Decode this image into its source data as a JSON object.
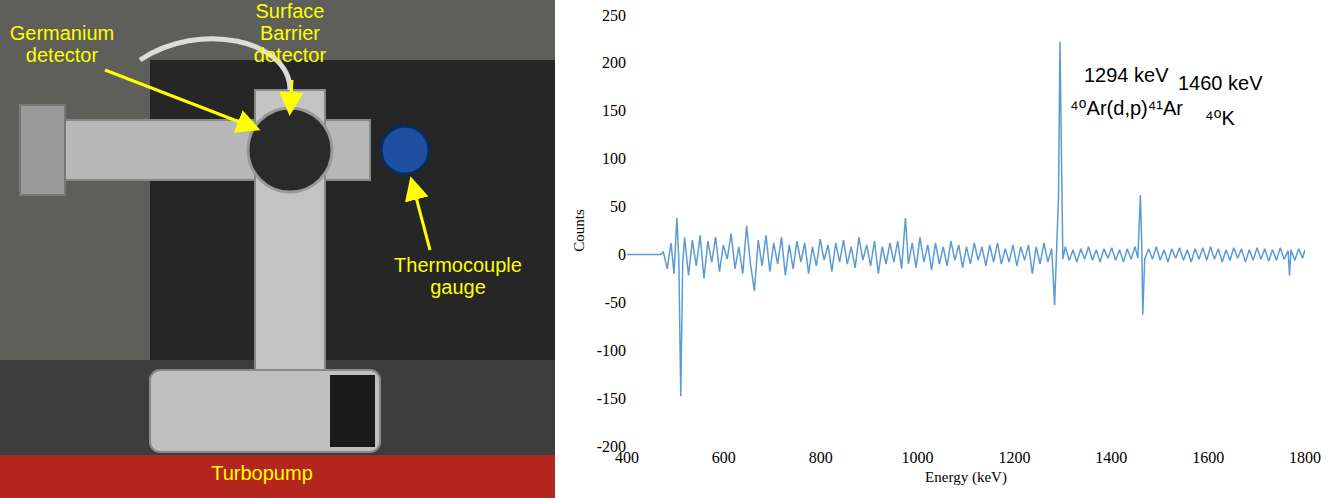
{
  "photo": {
    "labels": [
      {
        "lines": [
          "Germanium",
          "detector"
        ]
      },
      {
        "lines": [
          "Surface",
          "Barrier",
          "detector"
        ]
      },
      {
        "lines": [
          "Thermocouple",
          "gauge"
        ]
      },
      {
        "lines": [
          "Turbopump"
        ]
      }
    ]
  },
  "chart_data": {
    "type": "line",
    "x_label": "Energy (keV)",
    "y_label": "Counts",
    "color": "#5b9bd5",
    "grid": false,
    "xlim": [
      400,
      1800
    ],
    "ylim": [
      -200,
      250
    ],
    "xticks": [
      400,
      600,
      800,
      1000,
      1200,
      1400,
      1600,
      1800
    ],
    "yticks": [
      -200,
      -150,
      -100,
      -50,
      0,
      50,
      100,
      150,
      200,
      250
    ],
    "annotations": [
      {
        "lines": [
          "1294 keV",
          "⁴⁰Ar(d,p)⁴¹Ar"
        ]
      },
      {
        "lines": [
          "1460 keV",
          "⁴⁰K"
        ]
      }
    ],
    "x": [
      400,
      470,
      475,
      483,
      491,
      497,
      503,
      507,
      511,
      515,
      519,
      527,
      535,
      543,
      551,
      559,
      567,
      575,
      583,
      591,
      599,
      607,
      615,
      623,
      631,
      639,
      647,
      655,
      663,
      671,
      679,
      687,
      695,
      703,
      711,
      719,
      727,
      735,
      743,
      751,
      759,
      767,
      775,
      783,
      791,
      799,
      807,
      815,
      823,
      831,
      839,
      847,
      855,
      863,
      871,
      879,
      887,
      895,
      903,
      911,
      919,
      927,
      935,
      943,
      951,
      959,
      967,
      975,
      981,
      989,
      997,
      1005,
      1013,
      1021,
      1029,
      1037,
      1045,
      1053,
      1061,
      1069,
      1077,
      1085,
      1093,
      1101,
      1109,
      1117,
      1125,
      1133,
      1141,
      1149,
      1157,
      1165,
      1173,
      1181,
      1189,
      1197,
      1205,
      1213,
      1221,
      1229,
      1237,
      1245,
      1253,
      1261,
      1269,
      1277,
      1283,
      1287,
      1291,
      1294,
      1297,
      1300,
      1305,
      1313,
      1321,
      1329,
      1337,
      1345,
      1353,
      1361,
      1369,
      1377,
      1385,
      1393,
      1401,
      1409,
      1417,
      1425,
      1433,
      1441,
      1449,
      1455,
      1460,
      1463,
      1465,
      1469,
      1477,
      1485,
      1493,
      1501,
      1509,
      1517,
      1525,
      1533,
      1541,
      1549,
      1557,
      1565,
      1573,
      1581,
      1589,
      1597,
      1605,
      1613,
      1621,
      1629,
      1637,
      1645,
      1653,
      1661,
      1669,
      1677,
      1685,
      1693,
      1701,
      1709,
      1717,
      1725,
      1733,
      1741,
      1749,
      1757,
      1765,
      1768,
      1771,
      1779,
      1787,
      1795,
      1800
    ],
    "values": [
      0,
      0,
      3,
      -15,
      12,
      -20,
      38,
      -5,
      -148,
      -10,
      18,
      -22,
      15,
      -12,
      20,
      -25,
      14,
      -8,
      18,
      -18,
      10,
      -5,
      22,
      -15,
      8,
      -20,
      30,
      -10,
      -38,
      15,
      -12,
      20,
      -18,
      12,
      -10,
      18,
      -22,
      10,
      -15,
      14,
      -8,
      12,
      -20,
      8,
      -12,
      16,
      -6,
      10,
      -18,
      12,
      -8,
      15,
      -10,
      8,
      -14,
      18,
      -6,
      10,
      -12,
      14,
      -20,
      8,
      -10,
      12,
      -8,
      14,
      -15,
      38,
      -10,
      12,
      -14,
      18,
      -8,
      10,
      -16,
      12,
      -10,
      8,
      -12,
      14,
      -6,
      10,
      -14,
      8,
      -10,
      12,
      -6,
      8,
      -12,
      10,
      -8,
      12,
      -10,
      6,
      -8,
      10,
      -12,
      8,
      -6,
      10,
      -20,
      8,
      -10,
      12,
      -8,
      6,
      -53,
      -5,
      60,
      222,
      80,
      -5,
      8,
      -6,
      5,
      -8,
      6,
      -5,
      8,
      -6,
      5,
      -8,
      6,
      -4,
      7,
      -6,
      5,
      -8,
      6,
      -5,
      8,
      -4,
      62,
      10,
      -63,
      -5,
      6,
      -5,
      8,
      -6,
      5,
      -8,
      6,
      -4,
      7,
      -6,
      5,
      -8,
      6,
      -5,
      7,
      -6,
      8,
      -5,
      6,
      -8,
      5,
      -6,
      7,
      -4,
      6,
      -8,
      5,
      -6,
      7,
      -5,
      6,
      -7,
      5,
      -6,
      7,
      -5,
      4,
      -22,
      5,
      -6,
      6,
      -4,
      5
    ]
  }
}
